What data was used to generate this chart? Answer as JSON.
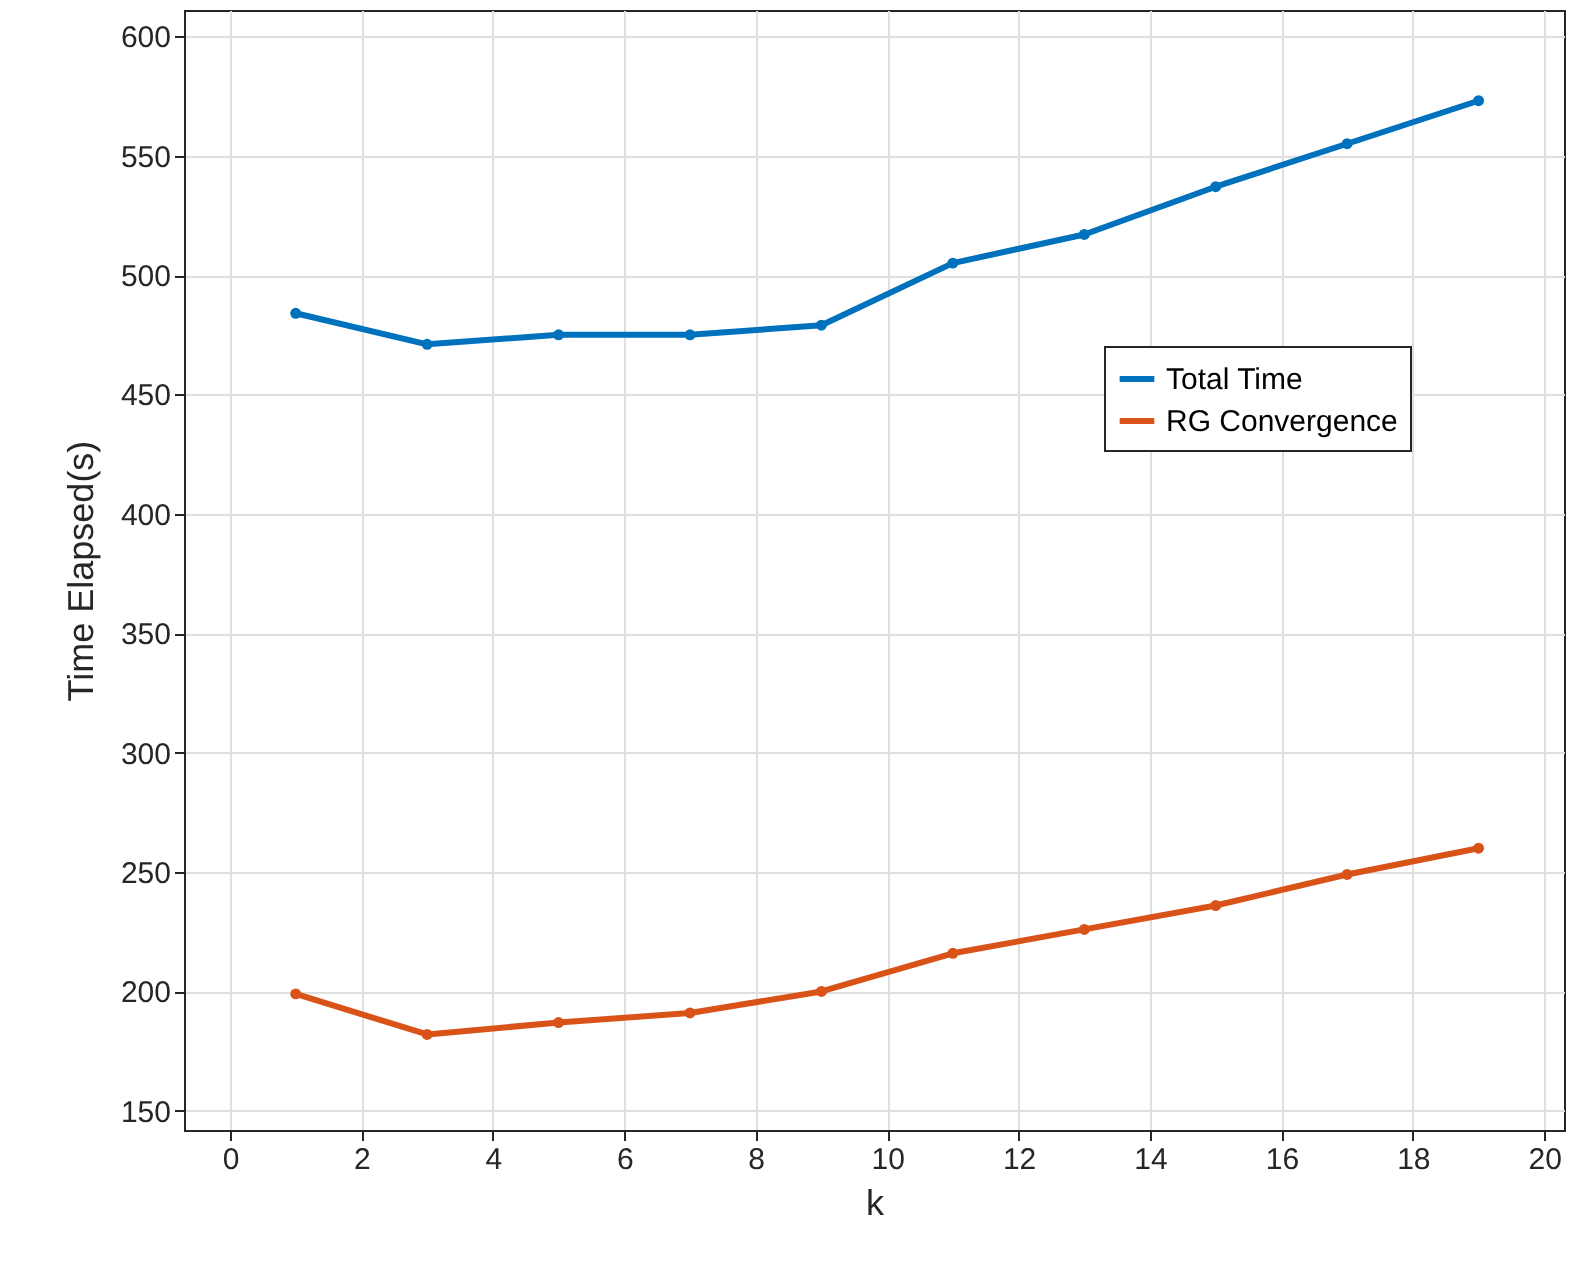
{
  "chart_data": {
    "type": "line",
    "xlabel": "k",
    "ylabel": "Time Elapsed(s)",
    "x": [
      1,
      3,
      5,
      7,
      9,
      11,
      13,
      15,
      17,
      19
    ],
    "series": [
      {
        "name": "Total Time",
        "color": "#0072bd",
        "values": [
          484,
          471,
          475,
          475,
          479,
          505,
          517,
          537,
          555,
          573
        ]
      },
      {
        "name": "RG Convergence",
        "color": "#d95319",
        "values": [
          199,
          182,
          187,
          191,
          200,
          216,
          226,
          236,
          249,
          260
        ]
      }
    ],
    "xlim": [
      -0.7,
      20.3
    ],
    "ylim": [
      142,
      611
    ],
    "xticks": [
      0,
      2,
      4,
      6,
      8,
      10,
      12,
      14,
      16,
      18,
      20
    ],
    "yticks": [
      150,
      200,
      250,
      300,
      350,
      400,
      450,
      500,
      550,
      600
    ],
    "grid": true,
    "legend": "right",
    "marker": "circle",
    "line_style": "solid"
  }
}
